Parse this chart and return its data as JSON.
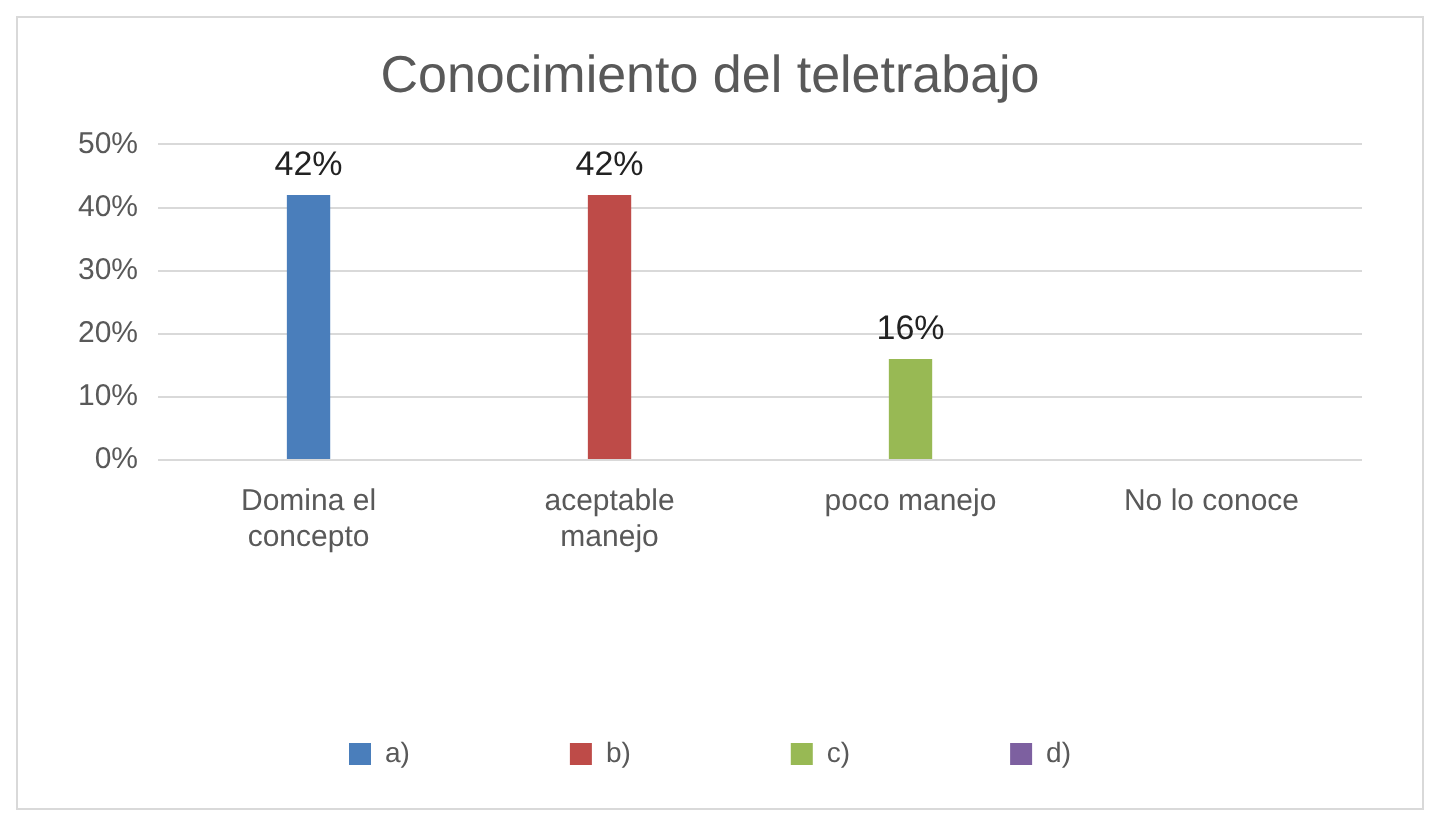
{
  "chart_data": {
    "type": "bar",
    "title": "Conocimiento del teletrabajo",
    "categories": [
      "Domina el concepto",
      "aceptable manejo",
      "poco manejo",
      "No lo conoce"
    ],
    "series": [
      {
        "name": "a)",
        "color": "#4a7ebb",
        "values": [
          42,
          null,
          null,
          null
        ],
        "value_labels": [
          "42%",
          null,
          null,
          null
        ]
      },
      {
        "name": "b)",
        "color": "#be4b48",
        "values": [
          null,
          42,
          null,
          null
        ],
        "value_labels": [
          null,
          "42%",
          null,
          null
        ]
      },
      {
        "name": "c)",
        "color": "#98b954",
        "values": [
          null,
          null,
          16,
          null
        ],
        "value_labels": [
          null,
          null,
          "16%",
          null
        ]
      },
      {
        "name": "d)",
        "color": "#7d60a0",
        "values": [
          null,
          null,
          null,
          0
        ],
        "value_labels": [
          null,
          null,
          null,
          null
        ]
      }
    ],
    "ylim": [
      0,
      50
    ],
    "yticks": [
      {
        "value": 0,
        "label": "0%"
      },
      {
        "value": 10,
        "label": "10%"
      },
      {
        "value": 20,
        "label": "20%"
      },
      {
        "value": 30,
        "label": "30%"
      },
      {
        "value": 40,
        "label": "40%"
      },
      {
        "value": 50,
        "label": "50%"
      }
    ],
    "grid": "y",
    "legend": "bottom"
  }
}
